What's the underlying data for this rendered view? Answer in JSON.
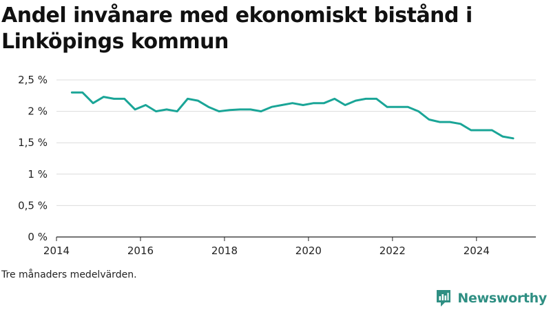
{
  "title": "Andel invånare med ekonomiskt bistånd i Linköpings kommun",
  "footnote": "Tre månaders medelvärden.",
  "brand": {
    "name": "Newsworthy",
    "icon": "newsworthy-logo-icon",
    "color": "#2f8f83"
  },
  "chart_data": {
    "type": "line",
    "title": "Andel invånare med ekonomiskt bistånd i Linköpings kommun",
    "xlabel": "",
    "ylabel": "",
    "x_ticks": [
      "2014",
      "2016",
      "2018",
      "2020",
      "2022",
      "2024"
    ],
    "y_ticks": [
      "0 %",
      "0,5 %",
      "1 %",
      "1,5 %",
      "2 %",
      "2,5 %"
    ],
    "xlim": [
      "2014-01-01",
      "2025-06-01"
    ],
    "ylim": [
      0,
      2.5
    ],
    "grid": {
      "horizontal": true,
      "vertical": false
    },
    "line_color": "#1aa597",
    "series": [
      {
        "x": [
          "2014-05-15",
          "2014-08-15",
          "2014-11-15",
          "2015-02-15",
          "2015-05-15",
          "2015-08-15",
          "2015-11-15",
          "2016-02-15",
          "2016-05-15",
          "2016-08-15",
          "2016-11-15",
          "2017-02-15",
          "2017-05-15",
          "2017-08-15",
          "2017-11-15",
          "2018-02-15",
          "2018-05-15",
          "2018-08-15",
          "2018-11-15",
          "2019-02-15",
          "2019-05-15",
          "2019-08-15",
          "2019-11-15",
          "2020-02-15",
          "2020-05-15",
          "2020-08-15",
          "2020-11-15",
          "2021-02-15",
          "2021-05-15",
          "2021-08-15",
          "2021-11-15",
          "2022-02-15",
          "2022-05-15",
          "2022-08-15",
          "2022-11-15",
          "2023-02-15",
          "2023-05-15",
          "2023-08-15",
          "2023-11-15",
          "2024-02-15",
          "2024-05-15",
          "2024-08-15",
          "2024-11-15"
        ],
        "y": [
          2.3,
          2.3,
          2.13,
          2.23,
          2.2,
          2.2,
          2.03,
          2.1,
          2.0,
          2.03,
          2.0,
          2.2,
          2.17,
          2.07,
          2.0,
          2.02,
          2.03,
          2.03,
          2.0,
          2.07,
          2.1,
          2.13,
          2.1,
          2.13,
          2.13,
          2.2,
          2.1,
          2.17,
          2.2,
          2.2,
          2.07,
          2.07,
          2.07,
          2.0,
          1.87,
          1.83,
          1.83,
          1.8,
          1.7,
          1.7,
          1.7,
          1.6,
          1.57
        ]
      }
    ]
  }
}
